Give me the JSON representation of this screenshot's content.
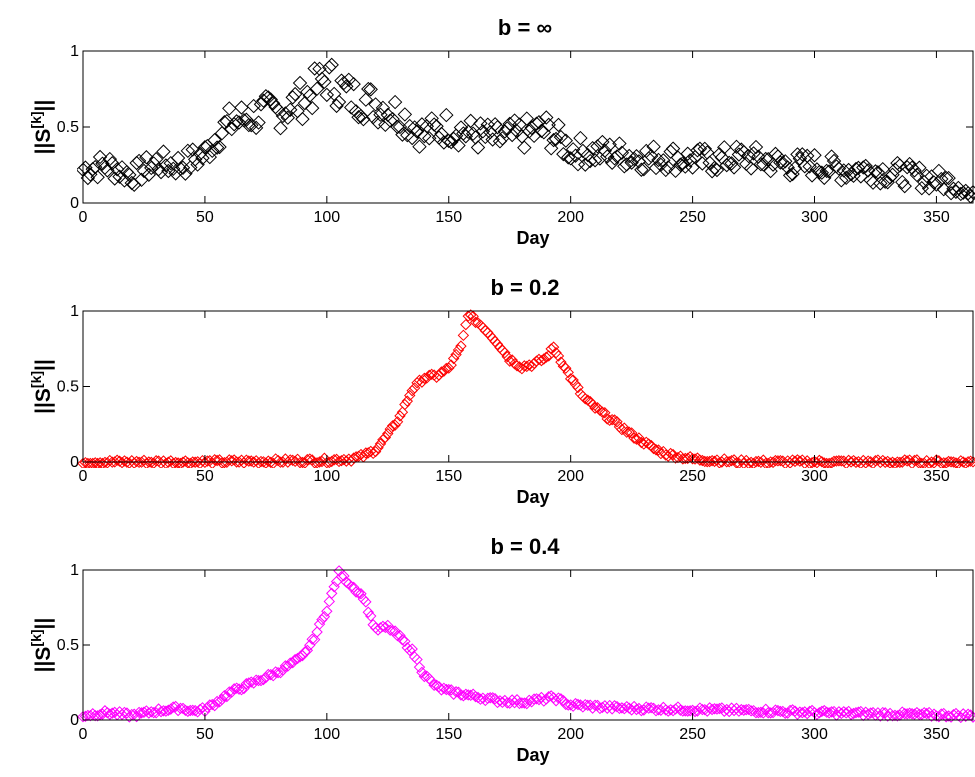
{
  "chart_data": [
    {
      "type": "scatter",
      "title": "b = ∞",
      "xlabel": "Day",
      "ylabel": {
        "main": "||S",
        "sup": "[k]",
        "tail": "||"
      },
      "xlim": [
        0,
        365
      ],
      "ylim": [
        0,
        1
      ],
      "xticks": [
        "0",
        "50",
        "100",
        "150",
        "200",
        "250",
        "300",
        "350"
      ],
      "yticks": [
        "0",
        "0.5",
        "1"
      ],
      "marker": "diamond",
      "color": "#000000",
      "grid": false,
      "series": [
        {
          "x": [
            0,
            10,
            20,
            30,
            40,
            50,
            55,
            60,
            70,
            80,
            90,
            100,
            110,
            120,
            130,
            140,
            150,
            160,
            170,
            180,
            190,
            200,
            210,
            220,
            230,
            240,
            250,
            260,
            270,
            280,
            290,
            300,
            310,
            320,
            330,
            340,
            350,
            360,
            365
          ],
          "y": [
            0.22,
            0.25,
            0.18,
            0.26,
            0.25,
            0.32,
            0.45,
            0.52,
            0.58,
            0.6,
            0.68,
            0.82,
            0.7,
            0.65,
            0.58,
            0.45,
            0.5,
            0.45,
            0.42,
            0.45,
            0.48,
            0.35,
            0.33,
            0.32,
            0.3,
            0.3,
            0.28,
            0.28,
            0.3,
            0.28,
            0.25,
            0.25,
            0.22,
            0.22,
            0.2,
            0.18,
            0.15,
            0.12,
            0.02
          ]
        }
      ]
    },
    {
      "type": "scatter",
      "title": "b = 0.2",
      "xlabel": "Day",
      "ylabel": {
        "main": "||S",
        "sup": "[k]",
        "tail": "||"
      },
      "xlim": [
        0,
        365
      ],
      "ylim": [
        0,
        1
      ],
      "xticks": [
        "0",
        "50",
        "100",
        "150",
        "200",
        "250",
        "300",
        "350"
      ],
      "yticks": [
        "0",
        "0.5",
        "1"
      ],
      "marker": "diamond",
      "color": "#ff0000",
      "grid": false,
      "series": [
        {
          "x": [
            0,
            50,
            100,
            110,
            115,
            120,
            125,
            130,
            135,
            140,
            145,
            150,
            155,
            158,
            160,
            165,
            170,
            175,
            180,
            185,
            190,
            193,
            200,
            205,
            210,
            215,
            220,
            225,
            230,
            235,
            240,
            250,
            260,
            270,
            300,
            365
          ],
          "y": [
            0,
            0,
            0.01,
            0.02,
            0.04,
            0.08,
            0.18,
            0.3,
            0.48,
            0.56,
            0.57,
            0.62,
            0.76,
            0.98,
            0.95,
            0.88,
            0.79,
            0.68,
            0.63,
            0.65,
            0.69,
            0.76,
            0.56,
            0.43,
            0.36,
            0.3,
            0.24,
            0.18,
            0.13,
            0.08,
            0.05,
            0.02,
            0.01,
            0,
            0,
            0
          ]
        }
      ]
    },
    {
      "type": "scatter",
      "title": "b = 0.4",
      "xlabel": "Day",
      "ylabel": {
        "main": "||S",
        "sup": "[k]",
        "tail": "||"
      },
      "xlim": [
        0,
        365
      ],
      "ylim": [
        0,
        1
      ],
      "xticks": [
        "0",
        "50",
        "100",
        "150",
        "200",
        "250",
        "300",
        "350"
      ],
      "yticks": [
        "0",
        "0.5",
        "1"
      ],
      "marker": "diamond",
      "color": "#ff00ff",
      "grid": false,
      "series": [
        {
          "x": [
            0,
            10,
            20,
            30,
            40,
            45,
            50,
            55,
            60,
            70,
            80,
            90,
            95,
            100,
            105,
            110,
            115,
            120,
            125,
            130,
            135,
            140,
            145,
            150,
            160,
            170,
            180,
            190,
            193,
            200,
            220,
            250,
            280,
            300,
            330,
            365
          ],
          "y": [
            0.03,
            0.05,
            0.03,
            0.06,
            0.08,
            0.06,
            0.07,
            0.12,
            0.18,
            0.25,
            0.32,
            0.42,
            0.55,
            0.74,
            0.98,
            0.9,
            0.82,
            0.6,
            0.62,
            0.55,
            0.46,
            0.3,
            0.22,
            0.19,
            0.16,
            0.13,
            0.12,
            0.14,
            0.15,
            0.1,
            0.08,
            0.07,
            0.06,
            0.05,
            0.04,
            0.03
          ]
        }
      ]
    }
  ]
}
